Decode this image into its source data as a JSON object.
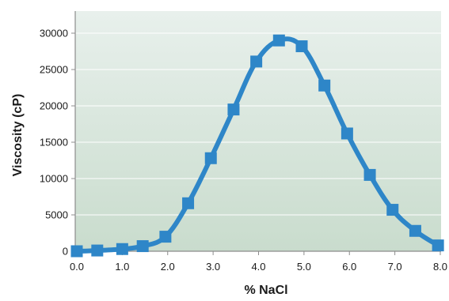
{
  "chart_data": {
    "type": "line",
    "title": "",
    "xlabel": "% NaCl",
    "ylabel": "Viscosity (cP)",
    "xlim": [
      0.0,
      8.0
    ],
    "ylim": [
      0,
      32500
    ],
    "x_ticks": [
      0.0,
      1.0,
      2.0,
      3.0,
      4.0,
      5.0,
      6.0,
      7.0,
      8.0
    ],
    "x_tick_labels": [
      "0.0",
      "1.0",
      "2.0",
      "3.0",
      "4.0",
      "5.0",
      "6.0",
      "7.0",
      "8.0"
    ],
    "y_ticks": [
      0,
      5000,
      10000,
      15000,
      20000,
      25000,
      30000
    ],
    "y_tick_labels": [
      "0",
      "5000",
      "10000",
      "15000",
      "20000",
      "25000",
      "30000"
    ],
    "grid": "horizontal",
    "legend": "none",
    "series": [
      {
        "x": [
          0.0,
          0.45,
          1.0,
          1.45,
          1.95,
          2.45,
          2.95,
          3.45,
          3.95,
          4.45,
          4.95,
          5.45,
          5.95,
          6.45,
          6.95,
          7.45,
          7.95
        ],
        "y": [
          0,
          100,
          300,
          700,
          2000,
          6600,
          12800,
          19500,
          26100,
          29000,
          28200,
          22800,
          16200,
          10500,
          5700,
          2800,
          800
        ]
      }
    ],
    "colors": {
      "line": "#2e86c8",
      "marker": "#2e86c8",
      "plot_bg_top": "#e8f0ec",
      "plot_bg_bottom": "#c9dccd",
      "grid": "#ffffff",
      "axis": "#8c8c8c"
    }
  }
}
